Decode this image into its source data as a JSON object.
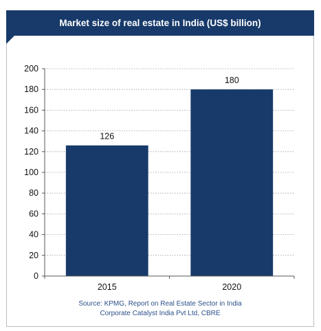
{
  "chart_data": {
    "type": "bar",
    "title": "Market size of real estate in India (US$ billion)",
    "categories": [
      "2015",
      "2020"
    ],
    "values": [
      126,
      180
    ],
    "data_labels": [
      "126",
      "180"
    ],
    "xlabel": "",
    "ylabel": "",
    "ylim": [
      0,
      200
    ],
    "yticks": [
      0,
      20,
      40,
      60,
      80,
      100,
      120,
      140,
      160,
      180,
      200
    ],
    "grid": true,
    "legend": "none",
    "bar_color": "#173a6a",
    "title_background": "#173a6a"
  },
  "source": {
    "line1": "Source: KPMG, Report on Real Estate Sector in India",
    "line2": "Corporate Catalyst India Pvt Ltd, CBRE"
  }
}
